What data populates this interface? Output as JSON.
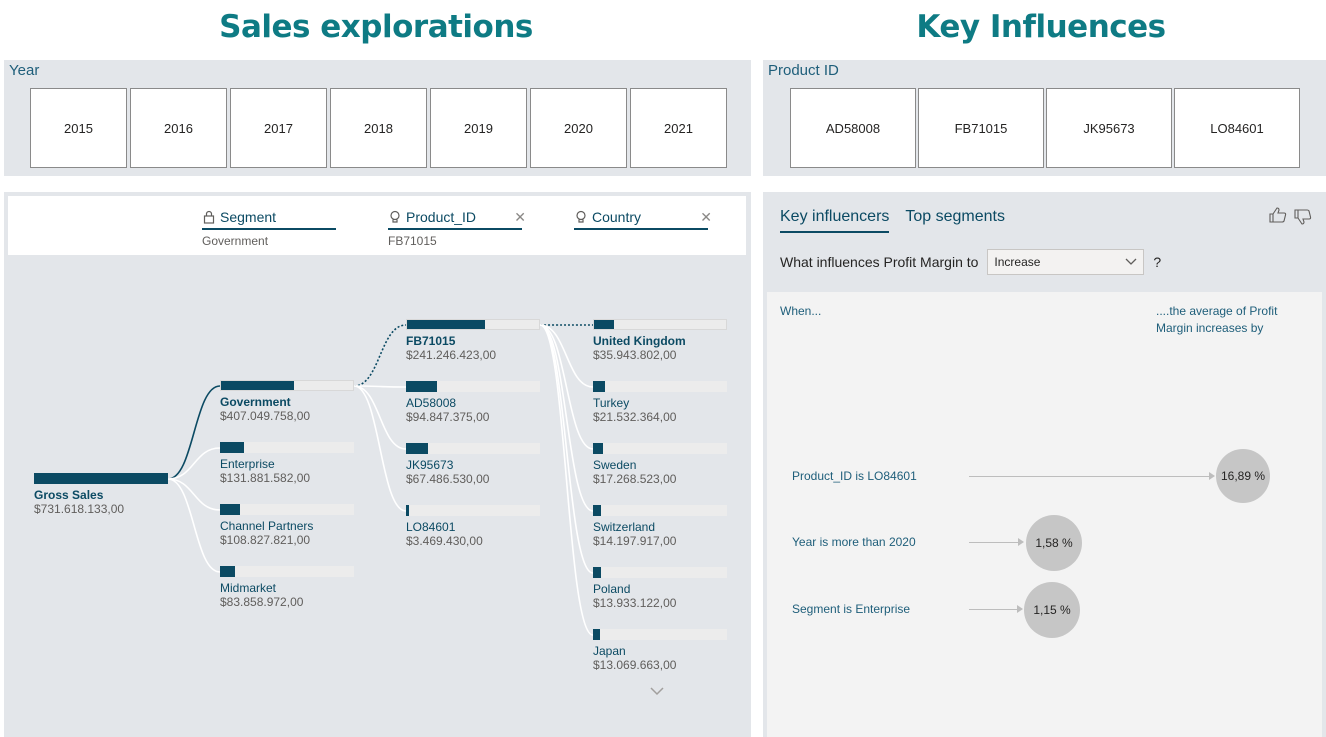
{
  "titles": {
    "left": "Sales explorations",
    "right": "Key Influences"
  },
  "year_slicer": {
    "header": "Year",
    "options": [
      "2015",
      "2016",
      "2017",
      "2018",
      "2019",
      "2020",
      "2021"
    ]
  },
  "product_slicer": {
    "header": "Product ID",
    "options": [
      "AD58008",
      "FB71015",
      "JK95673",
      "LO84601"
    ]
  },
  "decomposition": {
    "levels": [
      {
        "name": "Segment",
        "selected": "Government",
        "icon": "lock-icon"
      },
      {
        "name": "Product_ID",
        "selected": "FB71015",
        "icon": "lightbulb-icon"
      },
      {
        "name": "Country",
        "selected": "",
        "icon": "lightbulb-icon"
      }
    ],
    "root": {
      "label": "Gross Sales",
      "value": "$731.618.133,00",
      "share": 1.0
    },
    "segment": [
      {
        "label": "Government",
        "value": "$407.049.758,00",
        "share": 0.556,
        "selected": true
      },
      {
        "label": "Enterprise",
        "value": "$131.881.582,00",
        "share": 0.18
      },
      {
        "label": "Channel Partners",
        "value": "$108.827.821,00",
        "share": 0.149
      },
      {
        "label": "Midmarket",
        "value": "$83.858.972,00",
        "share": 0.115
      }
    ],
    "product": [
      {
        "label": "FB71015",
        "value": "$241.246.423,00",
        "share": 0.593,
        "selected": true
      },
      {
        "label": "AD58008",
        "value": "$94.847.375,00",
        "share": 0.233
      },
      {
        "label": "JK95673",
        "value": "$67.486.530,00",
        "share": 0.166
      },
      {
        "label": "LO84601",
        "value": "$3.469.430,00",
        "share": 0.009
      }
    ],
    "country": [
      {
        "label": "United Kingdom",
        "value": "$35.943.802,00",
        "share": 0.149,
        "selected": true
      },
      {
        "label": "Turkey",
        "value": "$21.532.364,00",
        "share": 0.089
      },
      {
        "label": "Sweden",
        "value": "$17.268.523,00",
        "share": 0.072
      },
      {
        "label": "Switzerland",
        "value": "$14.197.917,00",
        "share": 0.059
      },
      {
        "label": "Poland",
        "value": "$13.933.122,00",
        "share": 0.058
      },
      {
        "label": "Japan",
        "value": "$13.069.663,00",
        "share": 0.054
      }
    ]
  },
  "key_influencers": {
    "tabs": [
      "Key influencers",
      "Top segments"
    ],
    "question_prefix": "What influences Profit Margin to",
    "dropdown_value": "Increase",
    "question_suffix": "?",
    "when_label": "When...",
    "avg_label": "....the average of Profit Margin increases by",
    "influencers": [
      {
        "label": "Product_ID is LO84601",
        "value": "16,89 %",
        "magnitude": 16.89
      },
      {
        "label": "Year is more than 2020",
        "value": "1,58 %",
        "magnitude": 1.58
      },
      {
        "label": "Segment is Enterprise",
        "value": "1,15 %",
        "magnitude": 1.15
      }
    ]
  },
  "colors": {
    "title": "#0e7b84",
    "bar": "#0b4a63",
    "panel": "#e3e6ea",
    "bubble": "#c6c6c6"
  }
}
